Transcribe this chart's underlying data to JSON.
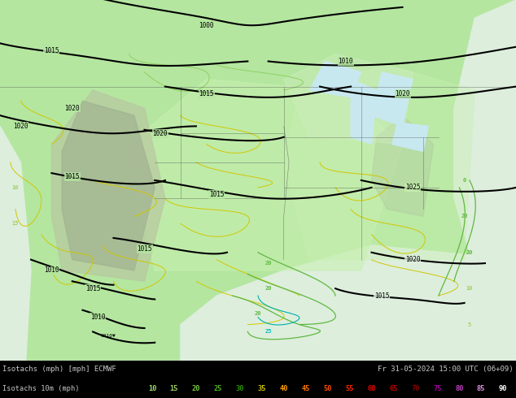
{
  "title_left": "Isotachs (mph) [mph] ECMWF",
  "title_right": "Fr 31-05-2024 15:00 UTC (06+09)",
  "legend_label": "Isotachs 10m (mph)",
  "legend_values": [
    "10",
    "15",
    "20",
    "25",
    "30",
    "35",
    "40",
    "45",
    "50",
    "55",
    "60",
    "65",
    "70",
    "75",
    "80",
    "85",
    "90"
  ],
  "legend_text_colors": [
    "#a0e070",
    "#a0d060",
    "#78c840",
    "#50b428",
    "#289600",
    "#d0c800",
    "#ffa000",
    "#ff7800",
    "#ff5000",
    "#ff2800",
    "#e00000",
    "#b40000",
    "#880000",
    "#a000a0",
    "#c040c0",
    "#e090e0",
    "#ffffff"
  ],
  "bottom_bg": "#000000",
  "label_color": "#c8c8c8",
  "fig_width": 6.34,
  "fig_height": 4.9,
  "dpi": 100,
  "map_base_green": "#b4e6a0",
  "map_light_green": "#c8f0b0",
  "map_mid_green": "#a0d890",
  "map_dark_green": "#78c068",
  "ocean_color": "#e8f4f8",
  "mountain_color": "#c8b090",
  "rockies_color": "#b89878",
  "water_gray": "#d8e8e8"
}
